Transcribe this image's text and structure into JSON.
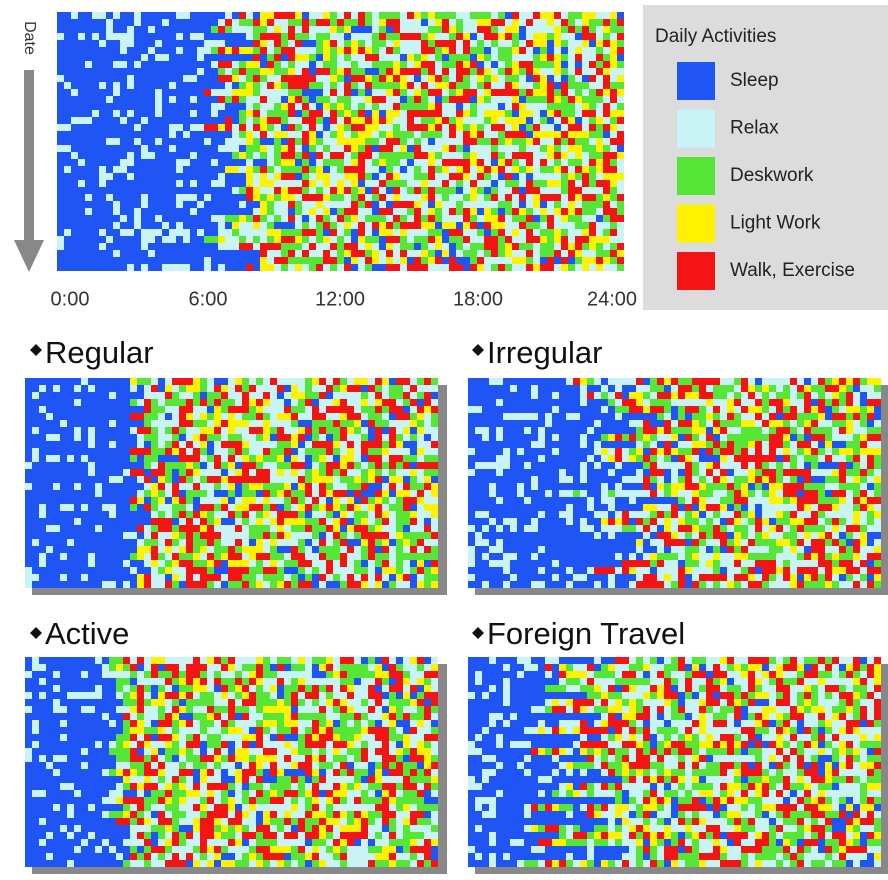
{
  "axis": {
    "label": "Date",
    "ticks": [
      "0:00",
      "6:00",
      "12:00",
      "18:00",
      "24:00"
    ]
  },
  "legend": {
    "title": "Daily Activities",
    "items": [
      {
        "name": "Sleep",
        "color": "#1f55f5"
      },
      {
        "name": "Relax",
        "color": "#c9f4f6"
      },
      {
        "name": "Deskwork",
        "color": "#55e638"
      },
      {
        "name": "Light Work",
        "color": "#fff200"
      },
      {
        "name": "Walk, Exercise",
        "color": "#f41414"
      }
    ]
  },
  "panels": [
    {
      "title": "Regular"
    },
    {
      "title": "Irregular"
    },
    {
      "title": "Active"
    },
    {
      "title": "Foreign Travel"
    }
  ]
}
